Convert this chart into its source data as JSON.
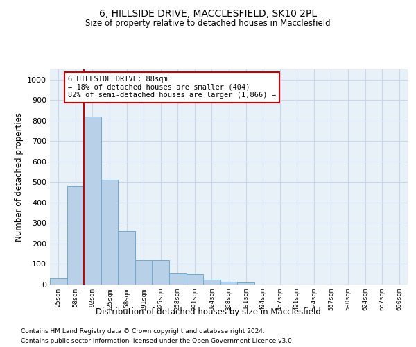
{
  "title_line1": "6, HILLSIDE DRIVE, MACCLESFIELD, SK10 2PL",
  "title_line2": "Size of property relative to detached houses in Macclesfield",
  "xlabel": "Distribution of detached houses by size in Macclesfield",
  "ylabel": "Number of detached properties",
  "bar_values": [
    30,
    480,
    820,
    510,
    260,
    120,
    120,
    55,
    50,
    25,
    15,
    10,
    0,
    0,
    0,
    0,
    0,
    0,
    0,
    0
  ],
  "bar_labels": [
    "25sqm",
    "58sqm",
    "92sqm",
    "125sqm",
    "158sqm",
    "191sqm",
    "225sqm",
    "258sqm",
    "291sqm",
    "324sqm",
    "358sqm",
    "391sqm",
    "424sqm",
    "457sqm",
    "491sqm",
    "524sqm",
    "557sqm",
    "590sqm",
    "624sqm",
    "657sqm",
    "690sqm"
  ],
  "bar_color": "#b8d0e8",
  "bar_edge_color": "#6aaad4",
  "grid_color": "#c8d8ea",
  "background_color": "#e8f0f8",
  "vline_color": "#cc0000",
  "annotation_text": "6 HILLSIDE DRIVE: 88sqm\n← 18% of detached houses are smaller (404)\n82% of semi-detached houses are larger (1,866) →",
  "annotation_box_color": "#cc0000",
  "ylim": [
    0,
    1050
  ],
  "yticks": [
    0,
    100,
    200,
    300,
    400,
    500,
    600,
    700,
    800,
    900,
    1000
  ],
  "footnote_line1": "Contains HM Land Registry data © Crown copyright and database right 2024.",
  "footnote_line2": "Contains public sector information licensed under the Open Government Licence v3.0."
}
